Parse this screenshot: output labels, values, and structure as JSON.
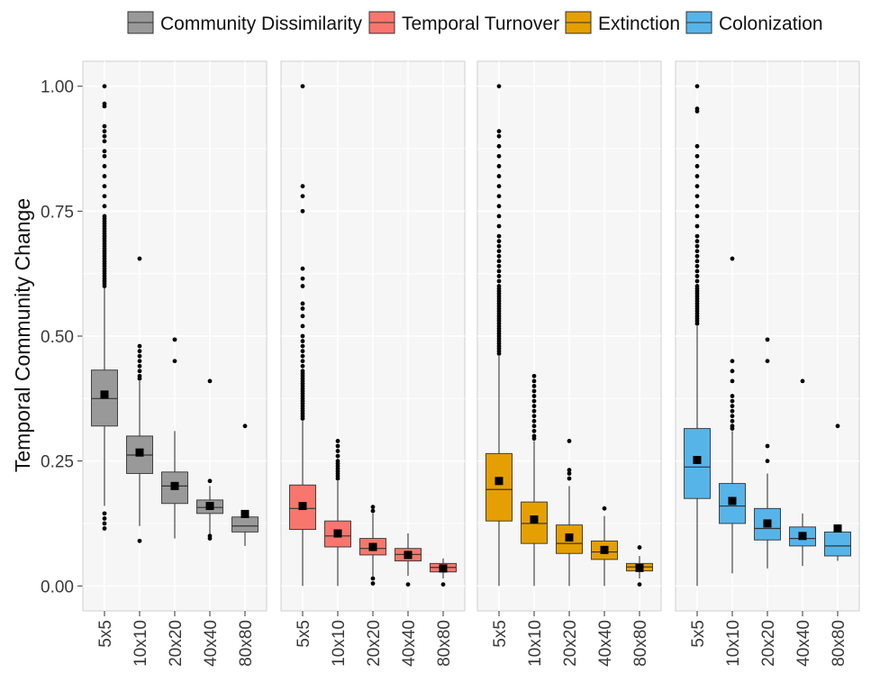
{
  "chart_data": {
    "type": "box",
    "ylabel": "Temporal Community Change",
    "xlabel": "",
    "ylim": [
      -0.05,
      1.05
    ],
    "yticks": [
      0.0,
      0.25,
      0.5,
      0.75,
      1.0
    ],
    "ytick_labels": [
      "0.00",
      "0.25",
      "0.50",
      "0.75",
      "1.00"
    ],
    "categories": [
      "5x5",
      "10x10",
      "20x20",
      "40x40",
      "80x80"
    ],
    "legend_position": "top",
    "grid": true,
    "series": [
      {
        "name": "Community Dissimilarity",
        "color": "#999999",
        "boxes": [
          {
            "q1": 0.32,
            "median": 0.375,
            "q3": 0.432,
            "low": 0.16,
            "high": 0.6,
            "mean": 0.383,
            "outliers": [
              0.115,
              0.125,
              0.135,
              0.145,
              0.6,
              0.605,
              0.61,
              0.615,
              0.62,
              0.625,
              0.63,
              0.635,
              0.64,
              0.645,
              0.65,
              0.655,
              0.66,
              0.665,
              0.67,
              0.675,
              0.68,
              0.685,
              0.69,
              0.695,
              0.7,
              0.705,
              0.71,
              0.715,
              0.72,
              0.725,
              0.73,
              0.735,
              0.74,
              0.76,
              0.78,
              0.8,
              0.82,
              0.84,
              0.86,
              0.87,
              0.89,
              0.9,
              0.91,
              0.92,
              0.96,
              0.965,
              1.0
            ]
          },
          {
            "q1": 0.225,
            "median": 0.262,
            "q3": 0.3,
            "low": 0.12,
            "high": 0.41,
            "mean": 0.267,
            "outliers": [
              0.09,
              0.415,
              0.42,
              0.43,
              0.44,
              0.45,
              0.46,
              0.47,
              0.48,
              0.655
            ]
          },
          {
            "q1": 0.165,
            "median": 0.2,
            "q3": 0.228,
            "low": 0.095,
            "high": 0.31,
            "mean": 0.2,
            "outliers": [
              0.45,
              0.493
            ]
          },
          {
            "q1": 0.145,
            "median": 0.157,
            "q3": 0.172,
            "low": 0.1,
            "high": 0.2,
            "mean": 0.16,
            "outliers": [
              0.095,
              0.1,
              0.21,
              0.41
            ]
          },
          {
            "q1": 0.108,
            "median": 0.12,
            "q3": 0.138,
            "low": 0.08,
            "high": 0.148,
            "mean": 0.144,
            "outliers": [
              0.32
            ]
          }
        ]
      },
      {
        "name": "Temporal Turnover",
        "color": "#f8766d",
        "boxes": [
          {
            "q1": 0.113,
            "median": 0.155,
            "q3": 0.202,
            "low": 0.0,
            "high": 0.33,
            "mean": 0.16,
            "outliers": [
              0.335,
              0.34,
              0.345,
              0.35,
              0.355,
              0.36,
              0.365,
              0.37,
              0.375,
              0.38,
              0.385,
              0.39,
              0.395,
              0.4,
              0.405,
              0.41,
              0.415,
              0.42,
              0.425,
              0.43,
              0.44,
              0.45,
              0.46,
              0.47,
              0.48,
              0.49,
              0.5,
              0.52,
              0.54,
              0.555,
              0.565,
              0.6,
              0.615,
              0.635,
              0.75,
              0.78,
              0.8,
              1.0
            ]
          },
          {
            "q1": 0.078,
            "median": 0.1,
            "q3": 0.13,
            "low": 0.0,
            "high": 0.21,
            "mean": 0.105,
            "outliers": [
              0.215,
              0.22,
              0.225,
              0.23,
              0.235,
              0.24,
              0.245,
              0.25,
              0.26,
              0.27,
              0.28,
              0.29
            ]
          },
          {
            "q1": 0.062,
            "median": 0.075,
            "q3": 0.095,
            "low": 0.02,
            "high": 0.145,
            "mean": 0.078,
            "outliers": [
              0.005,
              0.015,
              0.15,
              0.158
            ]
          },
          {
            "q1": 0.05,
            "median": 0.063,
            "q3": 0.075,
            "low": 0.02,
            "high": 0.105,
            "mean": 0.062,
            "outliers": [
              0.003
            ]
          },
          {
            "q1": 0.028,
            "median": 0.037,
            "q3": 0.045,
            "low": 0.015,
            "high": 0.055,
            "mean": 0.035,
            "outliers": [
              0.003
            ]
          }
        ]
      },
      {
        "name": "Extinction",
        "color": "#e69f00",
        "boxes": [
          {
            "q1": 0.13,
            "median": 0.193,
            "q3": 0.265,
            "low": 0.0,
            "high": 0.46,
            "mean": 0.21,
            "outliers": [
              0.465,
              0.47,
              0.475,
              0.48,
              0.485,
              0.49,
              0.495,
              0.5,
              0.505,
              0.51,
              0.515,
              0.52,
              0.525,
              0.53,
              0.535,
              0.54,
              0.545,
              0.55,
              0.555,
              0.56,
              0.565,
              0.57,
              0.575,
              0.58,
              0.585,
              0.59,
              0.595,
              0.6,
              0.61,
              0.62,
              0.63,
              0.64,
              0.65,
              0.66,
              0.67,
              0.68,
              0.69,
              0.7,
              0.72,
              0.74,
              0.76,
              0.78,
              0.8,
              0.82,
              0.84,
              0.86,
              0.88,
              0.9,
              0.91,
              1.0
            ]
          },
          {
            "q1": 0.085,
            "median": 0.125,
            "q3": 0.168,
            "low": 0.0,
            "high": 0.29,
            "mean": 0.133,
            "outliers": [
              0.295,
              0.3,
              0.31,
              0.32,
              0.33,
              0.34,
              0.35,
              0.36,
              0.37,
              0.38,
              0.39,
              0.4,
              0.41,
              0.42
            ]
          },
          {
            "q1": 0.065,
            "median": 0.085,
            "q3": 0.122,
            "low": 0.0,
            "high": 0.2,
            "mean": 0.097,
            "outliers": [
              0.215,
              0.225,
              0.232,
              0.29
            ]
          },
          {
            "q1": 0.053,
            "median": 0.068,
            "q3": 0.09,
            "low": 0.0,
            "high": 0.14,
            "mean": 0.072,
            "outliers": [
              0.155
            ]
          },
          {
            "q1": 0.03,
            "median": 0.038,
            "q3": 0.045,
            "low": 0.015,
            "high": 0.06,
            "mean": 0.036,
            "outliers": [
              0.003,
              0.077
            ]
          }
        ]
      },
      {
        "name": "Colonization",
        "color": "#56b4e9",
        "boxes": [
          {
            "q1": 0.175,
            "median": 0.238,
            "q3": 0.315,
            "low": 0.0,
            "high": 0.52,
            "mean": 0.252,
            "outliers": [
              0.525,
              0.53,
              0.535,
              0.54,
              0.545,
              0.55,
              0.555,
              0.56,
              0.565,
              0.57,
              0.575,
              0.58,
              0.585,
              0.59,
              0.595,
              0.6,
              0.61,
              0.62,
              0.63,
              0.64,
              0.65,
              0.66,
              0.67,
              0.68,
              0.69,
              0.7,
              0.72,
              0.74,
              0.76,
              0.78,
              0.8,
              0.82,
              0.84,
              0.86,
              0.88,
              0.95,
              0.955,
              1.0
            ]
          },
          {
            "q1": 0.125,
            "median": 0.16,
            "q3": 0.205,
            "low": 0.025,
            "high": 0.31,
            "mean": 0.17,
            "outliers": [
              0.315,
              0.32,
              0.33,
              0.34,
              0.35,
              0.36,
              0.37,
              0.38,
              0.41,
              0.43,
              0.45,
              0.655
            ]
          },
          {
            "q1": 0.092,
            "median": 0.115,
            "q3": 0.155,
            "low": 0.035,
            "high": 0.225,
            "mean": 0.125,
            "outliers": [
              0.25,
              0.28,
              0.45,
              0.493
            ]
          },
          {
            "q1": 0.08,
            "median": 0.095,
            "q3": 0.118,
            "low": 0.04,
            "high": 0.145,
            "mean": 0.1,
            "outliers": [
              0.41
            ]
          },
          {
            "q1": 0.06,
            "median": 0.08,
            "q3": 0.108,
            "low": 0.05,
            "high": 0.12,
            "mean": 0.115,
            "outliers": [
              0.32
            ]
          }
        ]
      }
    ]
  }
}
